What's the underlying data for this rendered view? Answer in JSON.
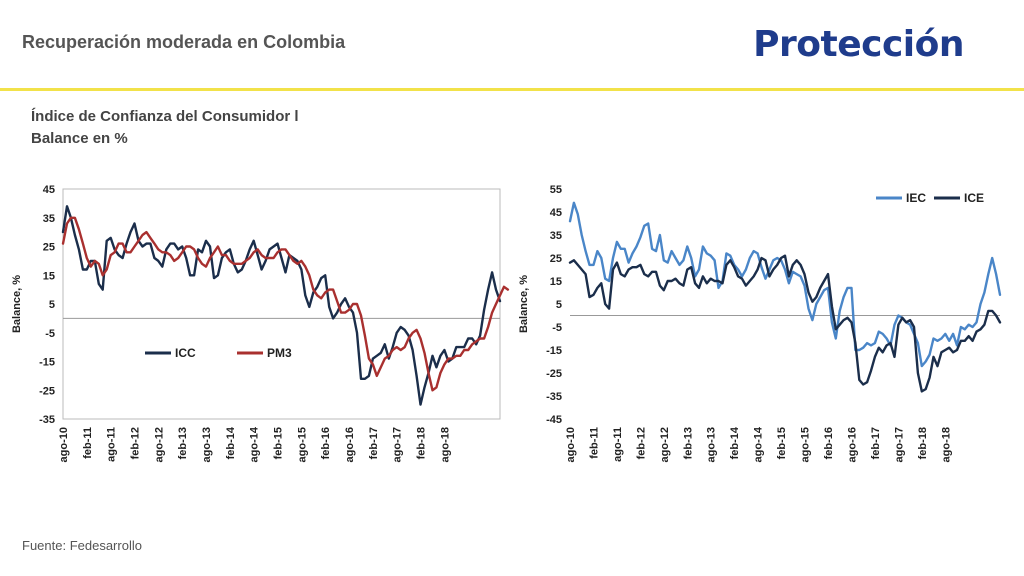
{
  "header": {
    "title": "Recuperación moderada en Colombia",
    "brand": "Protección"
  },
  "subtitle": {
    "line1": "Índice de Confianza del Consumidor l",
    "line2": "Balance en %"
  },
  "source": "Fuente: Fedesarrollo",
  "colors": {
    "accent_rule": "#f2e24a",
    "brand": "#1f3c8c"
  },
  "chart_data": [
    {
      "type": "line",
      "ylabel": "Balance, %",
      "ylim": [
        -35,
        45
      ],
      "yticks": [
        -35,
        -25,
        -15,
        -5,
        5,
        15,
        25,
        35,
        45
      ],
      "xtick_labels": [
        "ago-10",
        "feb-11",
        "ago-11",
        "feb-12",
        "ago-12",
        "feb-13",
        "ago-13",
        "feb-14",
        "ago-14",
        "feb-15",
        "ago-15",
        "feb-16",
        "ago-16",
        "feb-17",
        "ago-17",
        "feb-18",
        "ago-18"
      ],
      "x_start": "2010-08",
      "x_end": "2018-08",
      "legend_position": "bottom-center",
      "frame": true,
      "zero_line": true,
      "series": [
        {
          "name": "ICC",
          "color": "#1b2e4b",
          "values": [
            30,
            39,
            35,
            29,
            24,
            17,
            17,
            20,
            20,
            12,
            10,
            27,
            28,
            24,
            22,
            21,
            26,
            30,
            33,
            27,
            25,
            26,
            26,
            21,
            20,
            18,
            24,
            26,
            26,
            24,
            25,
            21,
            15,
            15,
            24,
            23,
            27,
            25,
            14,
            15,
            21,
            23,
            24,
            19,
            16,
            17,
            20,
            24,
            27,
            22,
            17,
            20,
            24,
            25,
            26,
            21,
            16,
            22,
            21,
            20,
            17,
            8,
            4,
            9,
            11,
            14,
            15,
            4,
            0,
            2,
            5,
            7,
            4,
            2,
            -5,
            -21,
            -21,
            -20,
            -14,
            -13,
            -12,
            -9,
            -14,
            -10,
            -5,
            -3,
            -4,
            -6,
            -11,
            -20,
            -30,
            -24,
            -19,
            -13,
            -17,
            -13,
            -11,
            -15,
            -14,
            -10,
            -10,
            -10,
            -7,
            -7,
            -9,
            -6,
            3,
            10,
            16,
            10,
            6
          ]
        },
        {
          "name": "PM3",
          "color": "#a9302f",
          "values": [
            26,
            33,
            35,
            35,
            31,
            26,
            21,
            18,
            20,
            19,
            15,
            17,
            22,
            23,
            26,
            26,
            23,
            23,
            25,
            27,
            29,
            30,
            28,
            26,
            24,
            23,
            23,
            22,
            20,
            21,
            23,
            25,
            25,
            24,
            21,
            19,
            18,
            21,
            23,
            25,
            22,
            22,
            20,
            19,
            19,
            19,
            20,
            21,
            23,
            24,
            22,
            21,
            21,
            21,
            23,
            24,
            24,
            22,
            20,
            19,
            20,
            18,
            15,
            10,
            8,
            7,
            9,
            10,
            10,
            6,
            2,
            2,
            3,
            5,
            5,
            1,
            -6,
            -14,
            -16,
            -20,
            -17,
            -14,
            -13,
            -11,
            -10,
            -11,
            -10,
            -7,
            -5,
            -4,
            -7,
            -12,
            -19,
            -25,
            -24,
            -19,
            -16,
            -14,
            -14,
            -13,
            -13,
            -11,
            -11,
            -9,
            -8,
            -7,
            -7,
            -3,
            2,
            5,
            8,
            11,
            10
          ]
        }
      ]
    },
    {
      "type": "line",
      "ylabel": "Balance, %",
      "ylim": [
        -45,
        55
      ],
      "yticks": [
        -45,
        -35,
        -25,
        -15,
        -5,
        5,
        15,
        25,
        35,
        45,
        55
      ],
      "xtick_labels": [
        "ago-10",
        "feb-11",
        "ago-11",
        "feb-12",
        "ago-12",
        "feb-13",
        "ago-13",
        "feb-14",
        "ago-14",
        "feb-15",
        "ago-15",
        "feb-16",
        "ago-16",
        "feb-17",
        "ago-17",
        "feb-18",
        "ago-18"
      ],
      "x_start": "2010-08",
      "x_end": "2018-08",
      "legend_position": "top-right",
      "frame": false,
      "zero_line": true,
      "series": [
        {
          "name": "IEC",
          "color": "#4a86c8",
          "values": [
            41,
            49,
            44,
            35,
            28,
            22,
            22,
            28,
            25,
            16,
            15,
            25,
            32,
            29,
            29,
            23,
            27,
            30,
            34,
            39,
            40,
            29,
            28,
            35,
            24,
            23,
            28,
            25,
            22,
            24,
            30,
            25,
            17,
            20,
            30,
            27,
            26,
            24,
            12,
            15,
            27,
            26,
            22,
            20,
            17,
            20,
            25,
            28,
            27,
            21,
            16,
            20,
            24,
            25,
            24,
            20,
            14,
            19,
            18,
            17,
            13,
            3,
            -2,
            5,
            8,
            11,
            12,
            -3,
            -10,
            2,
            8,
            12,
            12,
            -15,
            -15,
            -14,
            -12,
            -13,
            -12,
            -7,
            -8,
            -10,
            -13,
            -4,
            0,
            -1,
            -3,
            -4,
            -8,
            -12,
            -22,
            -20,
            -17,
            -10,
            -11,
            -10,
            -8,
            -11,
            -8,
            -13,
            -5,
            -6,
            -4,
            -5,
            -3,
            5,
            10,
            18,
            25,
            18,
            9
          ]
        },
        {
          "name": "ICE",
          "color": "#1b2e4b",
          "values": [
            23,
            24,
            22,
            20,
            18,
            8,
            9,
            12,
            14,
            5,
            3,
            20,
            23,
            18,
            17,
            20,
            21,
            21,
            22,
            18,
            17,
            19,
            19,
            13,
            11,
            15,
            15,
            16,
            14,
            13,
            20,
            21,
            14,
            12,
            17,
            14,
            16,
            15,
            15,
            14,
            22,
            24,
            21,
            17,
            16,
            13,
            15,
            17,
            20,
            25,
            24,
            17,
            20,
            22,
            25,
            26,
            17,
            22,
            24,
            22,
            18,
            10,
            6,
            8,
            12,
            15,
            18,
            4,
            -6,
            -4,
            -2,
            -1,
            -3,
            -12,
            -28,
            -30,
            -29,
            -24,
            -18,
            -14,
            -16,
            -13,
            -12,
            -18,
            -4,
            -1,
            -3,
            -2,
            -5,
            -25,
            -33,
            -32,
            -27,
            -18,
            -22,
            -16,
            -15,
            -14,
            -16,
            -15,
            -11,
            -11,
            -9,
            -11,
            -7,
            -6,
            -4,
            2,
            2,
            0,
            -3
          ]
        }
      ]
    }
  ]
}
